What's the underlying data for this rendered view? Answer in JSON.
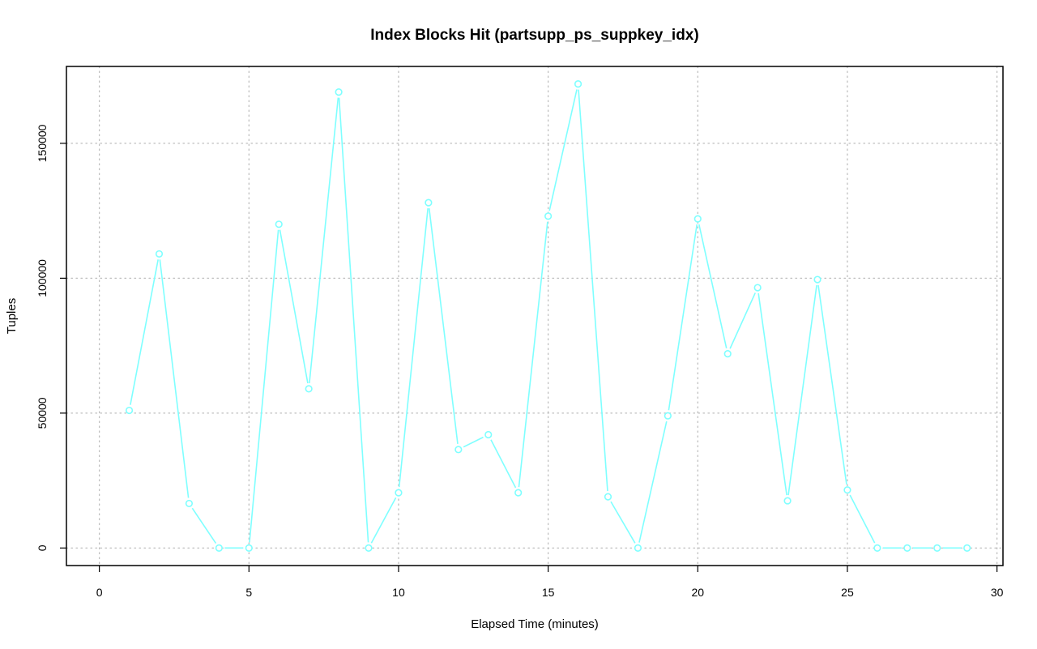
{
  "chart_data": {
    "type": "line",
    "title": "Index Blocks Hit (partsupp_ps_suppkey_idx)",
    "xlabel": "Elapsed Time (minutes)",
    "ylabel": "Tuples",
    "xlim": [
      -1.1,
      30.2
    ],
    "ylim": [
      -6500,
      178500
    ],
    "xticks": [
      0,
      5,
      10,
      15,
      20,
      25,
      30
    ],
    "yticks": [
      0,
      50000,
      100000,
      150000
    ],
    "grid": true,
    "legend": "none",
    "color": "#7fffff",
    "series": [
      {
        "x": [
          1,
          2,
          3,
          4,
          5,
          6,
          7,
          8,
          9,
          10,
          11,
          12,
          13,
          14,
          15,
          16,
          17,
          18,
          19,
          20,
          21,
          22,
          23,
          24,
          25,
          26,
          27,
          28,
          29
        ],
        "values": [
          51000,
          109000,
          16500,
          0,
          0,
          120000,
          59000,
          169000,
          0,
          20500,
          128000,
          36500,
          42000,
          20500,
          123000,
          172000,
          19000,
          0,
          49000,
          122000,
          72000,
          96500,
          17500,
          99500,
          21500,
          0,
          0,
          0,
          0
        ]
      }
    ]
  }
}
